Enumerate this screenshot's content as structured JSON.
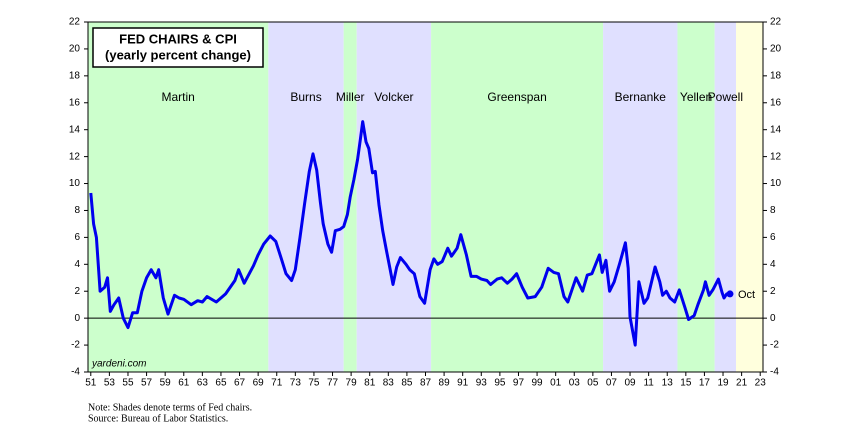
{
  "chart_data": {
    "type": "line",
    "title": "FED CHAIRS & CPI",
    "subtitle": "(yearly percent change)",
    "watermark": "yardeni.com",
    "notes": [
      "Note: Shades denote terms of Fed chairs.",
      "Source: Bureau of Labor Statistics."
    ],
    "end_label": "Oct",
    "xlim": [
      1950.7,
      2023.3
    ],
    "ylim": [
      -4,
      22
    ],
    "yticks": [
      -4,
      -2,
      0,
      2,
      4,
      6,
      8,
      10,
      12,
      14,
      16,
      18,
      20,
      22
    ],
    "xticks": [
      {
        "value": 1951,
        "label": "51"
      },
      {
        "value": 1953,
        "label": "53"
      },
      {
        "value": 1955,
        "label": "55"
      },
      {
        "value": 1957,
        "label": "57"
      },
      {
        "value": 1959,
        "label": "59"
      },
      {
        "value": 1961,
        "label": "61"
      },
      {
        "value": 1963,
        "label": "63"
      },
      {
        "value": 1965,
        "label": "65"
      },
      {
        "value": 1967,
        "label": "67"
      },
      {
        "value": 1969,
        "label": "69"
      },
      {
        "value": 1971,
        "label": "71"
      },
      {
        "value": 1973,
        "label": "73"
      },
      {
        "value": 1975,
        "label": "75"
      },
      {
        "value": 1977,
        "label": "77"
      },
      {
        "value": 1979,
        "label": "79"
      },
      {
        "value": 1981,
        "label": "81"
      },
      {
        "value": 1983,
        "label": "83"
      },
      {
        "value": 1985,
        "label": "85"
      },
      {
        "value": 1987,
        "label": "87"
      },
      {
        "value": 1989,
        "label": "89"
      },
      {
        "value": 1991,
        "label": "91"
      },
      {
        "value": 1993,
        "label": "93"
      },
      {
        "value": 1995,
        "label": "95"
      },
      {
        "value": 1997,
        "label": "97"
      },
      {
        "value": 1999,
        "label": "99"
      },
      {
        "value": 2001,
        "label": "01"
      },
      {
        "value": 2003,
        "label": "03"
      },
      {
        "value": 2005,
        "label": "05"
      },
      {
        "value": 2007,
        "label": "07"
      },
      {
        "value": 2009,
        "label": "09"
      },
      {
        "value": 2011,
        "label": "11"
      },
      {
        "value": 2013,
        "label": "13"
      },
      {
        "value": 2015,
        "label": "15"
      },
      {
        "value": 2017,
        "label": "17"
      },
      {
        "value": 2019,
        "label": "19"
      },
      {
        "value": 2021,
        "label": "21"
      },
      {
        "value": 2023,
        "label": "23"
      }
    ],
    "bands": [
      {
        "name": "Martin",
        "start": 1950.7,
        "end": 1970.1,
        "color": "#ccffcc"
      },
      {
        "name": "Burns",
        "start": 1970.1,
        "end": 1978.2,
        "color": "#e0e0ff"
      },
      {
        "name": "Miller",
        "start": 1978.2,
        "end": 1979.6,
        "color": "#ccffcc"
      },
      {
        "name": "Volcker",
        "start": 1979.6,
        "end": 1987.6,
        "color": "#e0e0ff"
      },
      {
        "name": "Greenspan",
        "start": 1987.6,
        "end": 2006.1,
        "color": "#ccffcc"
      },
      {
        "name": "Bernanke",
        "start": 2006.1,
        "end": 2014.1,
        "color": "#e0e0ff"
      },
      {
        "name": "Yellen",
        "start": 2014.1,
        "end": 2018.1,
        "color": "#ccffcc"
      },
      {
        "name": "Powell",
        "start": 2018.1,
        "end": 2020.4,
        "color": "#e0e0ff"
      },
      {
        "start": 2020.4,
        "end": 2023.3,
        "color": "#ffffdd"
      }
    ],
    "series": [
      {
        "color": "#0000ee",
        "x": [
          1951.0,
          1951.3,
          1951.6,
          1952.0,
          1952.5,
          1952.8,
          1953.1,
          1953.5,
          1954.0,
          1954.5,
          1955.0,
          1955.5,
          1956.0,
          1956.5,
          1957.0,
          1957.5,
          1958.0,
          1958.3,
          1958.8,
          1959.3,
          1960.0,
          1960.5,
          1961.0,
          1961.8,
          1962.5,
          1963.0,
          1963.5,
          1964.5,
          1965.5,
          1966.5,
          1966.9,
          1967.5,
          1968.5,
          1969.0,
          1969.6,
          1970.3,
          1970.9,
          1971.5,
          1972.0,
          1972.6,
          1973.0,
          1973.5,
          1974.0,
          1974.5,
          1974.9,
          1975.3,
          1975.7,
          1976.0,
          1976.5,
          1976.9,
          1977.3,
          1977.8,
          1978.2,
          1978.6,
          1978.9,
          1979.3,
          1979.7,
          1980.0,
          1980.25,
          1980.6,
          1980.9,
          1981.3,
          1981.6,
          1982.0,
          1982.4,
          1982.8,
          1983.2,
          1983.5,
          1983.9,
          1984.3,
          1984.9,
          1985.3,
          1985.8,
          1986.4,
          1986.9,
          1987.5,
          1987.9,
          1988.3,
          1988.8,
          1989.4,
          1989.8,
          1990.4,
          1990.8,
          1991.4,
          1991.9,
          1992.5,
          1993.0,
          1993.6,
          1994.0,
          1994.7,
          1995.2,
          1995.8,
          1996.3,
          1996.8,
          1997.4,
          1998.0,
          1998.8,
          1999.5,
          2000.2,
          2000.8,
          2001.3,
          2001.9,
          2002.3,
          2002.9,
          2003.2,
          2003.9,
          2004.4,
          2004.9,
          2005.7,
          2006.0,
          2006.4,
          2006.8,
          2007.3,
          2007.9,
          2008.5,
          2008.8,
          2009.0,
          2009.55,
          2009.95,
          2010.5,
          2010.9,
          2011.7,
          2012.2,
          2012.5,
          2012.9,
          2013.3,
          2013.8,
          2014.3,
          2014.9,
          2015.3,
          2015.9,
          2016.3,
          2016.9,
          2017.1,
          2017.5,
          2017.9,
          2018.5,
          2018.9,
          2019.1,
          2019.4,
          2019.6,
          2019.75
        ],
        "values": [
          9.3,
          7.0,
          6.0,
          2.0,
          2.3,
          3.0,
          0.5,
          1.0,
          1.5,
          0.0,
          -0.7,
          0.4,
          0.4,
          2.0,
          3.0,
          3.6,
          3.0,
          3.6,
          1.5,
          0.3,
          1.7,
          1.5,
          1.4,
          1.0,
          1.3,
          1.2,
          1.6,
          1.2,
          1.8,
          2.8,
          3.6,
          2.6,
          3.9,
          4.7,
          5.5,
          6.1,
          5.7,
          4.4,
          3.3,
          2.8,
          3.6,
          6.0,
          8.5,
          10.9,
          12.2,
          11.0,
          8.6,
          7.0,
          5.5,
          4.9,
          6.5,
          6.6,
          6.8,
          7.7,
          9.0,
          10.3,
          11.8,
          13.3,
          14.6,
          13.1,
          12.6,
          10.8,
          10.9,
          8.4,
          6.5,
          5.0,
          3.6,
          2.5,
          3.8,
          4.5,
          4.0,
          3.6,
          3.3,
          1.6,
          1.1,
          3.6,
          4.4,
          4.0,
          4.2,
          5.2,
          4.6,
          5.2,
          6.2,
          4.7,
          3.1,
          3.1,
          2.9,
          2.8,
          2.5,
          2.9,
          3.0,
          2.6,
          2.9,
          3.3,
          2.3,
          1.5,
          1.6,
          2.3,
          3.7,
          3.4,
          3.3,
          1.6,
          1.2,
          2.4,
          3.0,
          2.0,
          3.2,
          3.3,
          4.7,
          3.4,
          4.3,
          2.0,
          2.7,
          4.1,
          5.6,
          3.7,
          0.1,
          -2.0,
          2.7,
          1.1,
          1.5,
          3.8,
          2.7,
          1.7,
          2.0,
          1.5,
          1.2,
          2.1,
          0.8,
          -0.1,
          0.2,
          1.0,
          2.1,
          2.7,
          1.7,
          2.1,
          2.9,
          1.9,
          1.5,
          1.8,
          1.7,
          1.8
        ]
      }
    ]
  }
}
